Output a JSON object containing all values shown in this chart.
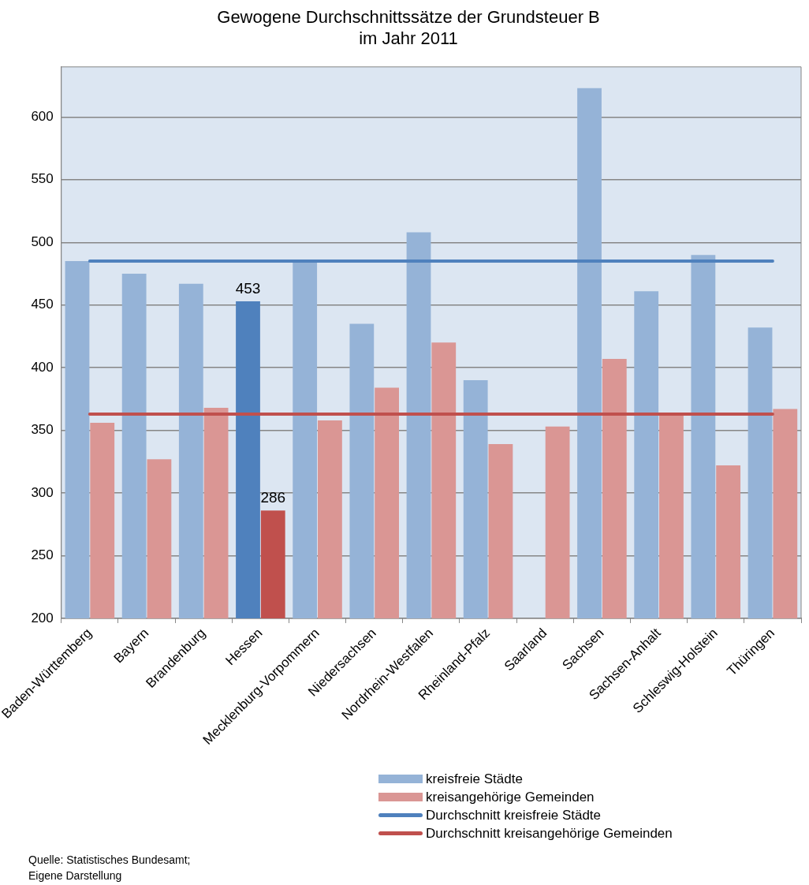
{
  "chart_data": {
    "type": "bar",
    "title": "Gewogene Durchschnittssätze der Grundsteuer B\nim Jahr 2011",
    "categories": [
      "Baden-Württemberg",
      "Bayern",
      "Brandenburg",
      "Hessen",
      "Mecklenburg-Vorpommern",
      "Niedersachsen",
      "Nordrhein-Westfalen",
      "Rheinland-Pfalz",
      "Saarland",
      "Sachsen",
      "Sachsen-Anhalt",
      "Schleswig-Holstein",
      "Thüringen"
    ],
    "series": [
      {
        "name": "kreisfreie Städte",
        "color": "#95b3d7",
        "colors": [
          "#95b3d7",
          "#95b3d7",
          "#95b3d7",
          "#4f81bd",
          "#95b3d7",
          "#95b3d7",
          "#95b3d7",
          "#95b3d7",
          "#95b3d7",
          "#95b3d7",
          "#95b3d7",
          "#95b3d7",
          "#95b3d7"
        ],
        "values": [
          485,
          475,
          467,
          453,
          485,
          435,
          508,
          390,
          null,
          623,
          461,
          490,
          432
        ],
        "value_labels": [
          null,
          null,
          null,
          "453",
          null,
          null,
          null,
          null,
          null,
          null,
          null,
          null,
          null
        ]
      },
      {
        "name": "kreisangehörige Gemeinden",
        "color": "#da9694",
        "colors": [
          "#da9694",
          "#da9694",
          "#da9694",
          "#c0504d",
          "#da9694",
          "#da9694",
          "#da9694",
          "#da9694",
          "#da9694",
          "#da9694",
          "#da9694",
          "#da9694",
          "#da9694"
        ],
        "values": [
          356,
          327,
          368,
          286,
          358,
          384,
          420,
          339,
          353,
          407,
          363,
          322,
          367
        ],
        "value_labels": [
          null,
          null,
          null,
          "286",
          null,
          null,
          null,
          null,
          null,
          null,
          null,
          null,
          null
        ]
      }
    ],
    "ref_lines": [
      {
        "axis": "y",
        "value": 485,
        "label": "Durchschnitt kreisfreie Städte",
        "color": "#4f81bd"
      },
      {
        "axis": "y",
        "value": 363,
        "label": "Durchschnitt kreisangehörige Gemeinden",
        "color": "#c0504d"
      }
    ],
    "ylim": [
      200,
      640
    ],
    "yticks": [
      200,
      250,
      300,
      350,
      400,
      450,
      500,
      550,
      600
    ],
    "grid": "y",
    "legend": "bottom",
    "annotations": [
      "Quelle: Statistisches Bundesamt;\nEigene Darstellung"
    ]
  }
}
